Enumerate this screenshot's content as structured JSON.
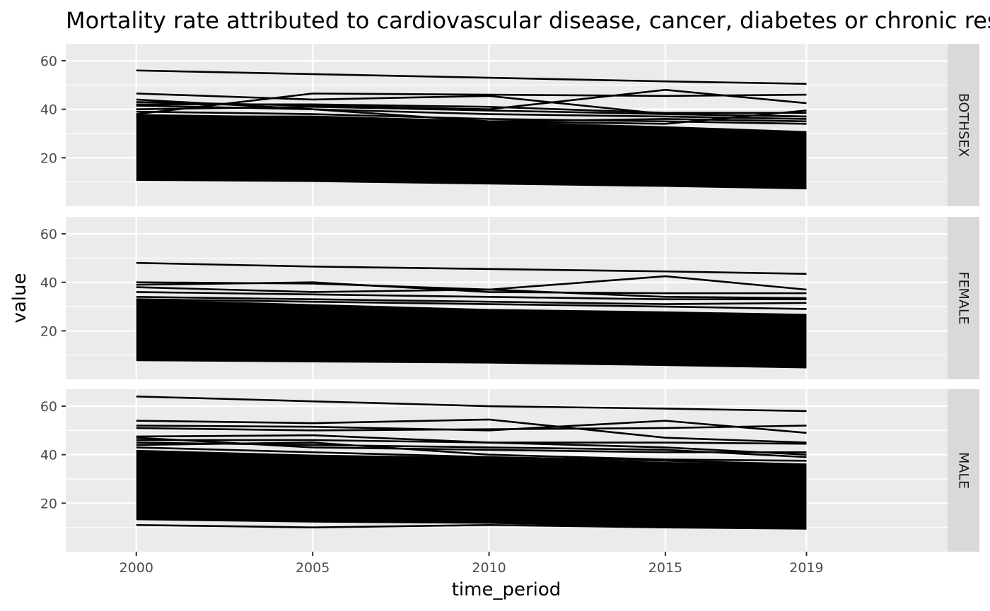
{
  "chart_data": {
    "type": "line",
    "title": "Mortality rate attributed to cardiovascular disease, cancer, diabetes or chronic respiratory disease",
    "xlabel": "time_period",
    "ylabel": "value",
    "x_ticks": [
      2000,
      2005,
      2010,
      2015,
      2019
    ],
    "y_ticks": [
      20,
      40,
      60
    ],
    "xlim": [
      1998,
      2023
    ],
    "ylim": [
      0,
      67
    ],
    "grid": true,
    "line_color": "#000000",
    "panel_background": "#ebebeb",
    "strip_background": "#d9d9d9",
    "facets": [
      {
        "label": "BOTHSEX",
        "x": [
          2000,
          2005,
          2010,
          2015,
          2019
        ],
        "envelope": {
          "max": [
            38,
            37,
            35,
            33,
            31
          ],
          "min": [
            10.5,
            10,
            9,
            8,
            7
          ]
        },
        "series": [
          {
            "values": [
              56,
              54.5,
              53,
              51.5,
              50.5
            ]
          },
          {
            "values": [
              46.5,
              44,
              45.5,
              38,
              37
            ]
          },
          {
            "values": [
              38,
              46.5,
              46,
              45.5,
              46
            ]
          },
          {
            "values": [
              43,
              41.5,
              40,
              48,
              42.5
            ]
          },
          {
            "values": [
              42,
              42,
              41,
              38.5,
              38.5
            ]
          },
          {
            "values": [
              40,
              41,
              39.5,
              38,
              37
            ]
          },
          {
            "values": [
              44,
              40,
              38,
              37,
              36
            ]
          },
          {
            "values": [
              41.5,
              40,
              35,
              36,
              35
            ]
          },
          {
            "values": [
              39,
              38,
              36,
              35,
              34
            ]
          },
          {
            "values": [
              37,
              37,
              35,
              34,
              39.5
            ]
          }
        ]
      },
      {
        "label": "FEMALE",
        "x": [
          2000,
          2005,
          2010,
          2015,
          2019
        ],
        "envelope": {
          "max": [
            33,
            31,
            29,
            28,
            27
          ],
          "min": [
            7.5,
            7,
            6.5,
            5.5,
            4.5
          ]
        },
        "series": [
          {
            "values": [
              48,
              46.5,
              45.5,
              44.5,
              43.5
            ]
          },
          {
            "values": [
              40,
              39.5,
              37,
              42.5,
              37
            ]
          },
          {
            "values": [
              39,
              40,
              36,
              35.5,
              35.5
            ]
          },
          {
            "values": [
              38,
              36,
              37,
              34,
              33.5
            ]
          },
          {
            "values": [
              36,
              35,
              34,
              33,
              33
            ]
          },
          {
            "values": [
              34,
              33,
              32,
              31,
              31.5
            ]
          },
          {
            "values": [
              33,
              32,
              31,
              30,
              29
            ]
          }
        ]
      },
      {
        "label": "MALE",
        "x": [
          2000,
          2005,
          2010,
          2015,
          2019
        ],
        "envelope": {
          "max": [
            42,
            40,
            39,
            37,
            36
          ],
          "min": [
            13,
            12,
            11.5,
            10,
            9.5
          ]
        },
        "series": [
          {
            "values": [
              64,
              62,
              60,
              59,
              58
            ]
          },
          {
            "values": [
              54,
              53,
              54.5,
              47,
              45
            ]
          },
          {
            "values": [
              52,
              51.5,
              50,
              54,
              49
            ]
          },
          {
            "values": [
              51,
              50,
              50.5,
              51,
              52
            ]
          },
          {
            "values": [
              47.5,
              48,
              45,
              45,
              44.5
            ]
          },
          {
            "values": [
              47,
              43,
              42,
              41,
              41
            ]
          },
          {
            "values": [
              46,
              46,
              45,
              43,
              40
            ]
          },
          {
            "values": [
              45,
              44,
              43,
              42,
              39
            ]
          },
          {
            "values": [
              44,
              45,
              40,
              38,
              37.5
            ]
          },
          {
            "values": [
              43,
              41,
              39,
              37.5,
              36
            ]
          },
          {
            "values": [
              11,
              10,
              11,
              10,
              9.5
            ]
          }
        ]
      }
    ]
  }
}
